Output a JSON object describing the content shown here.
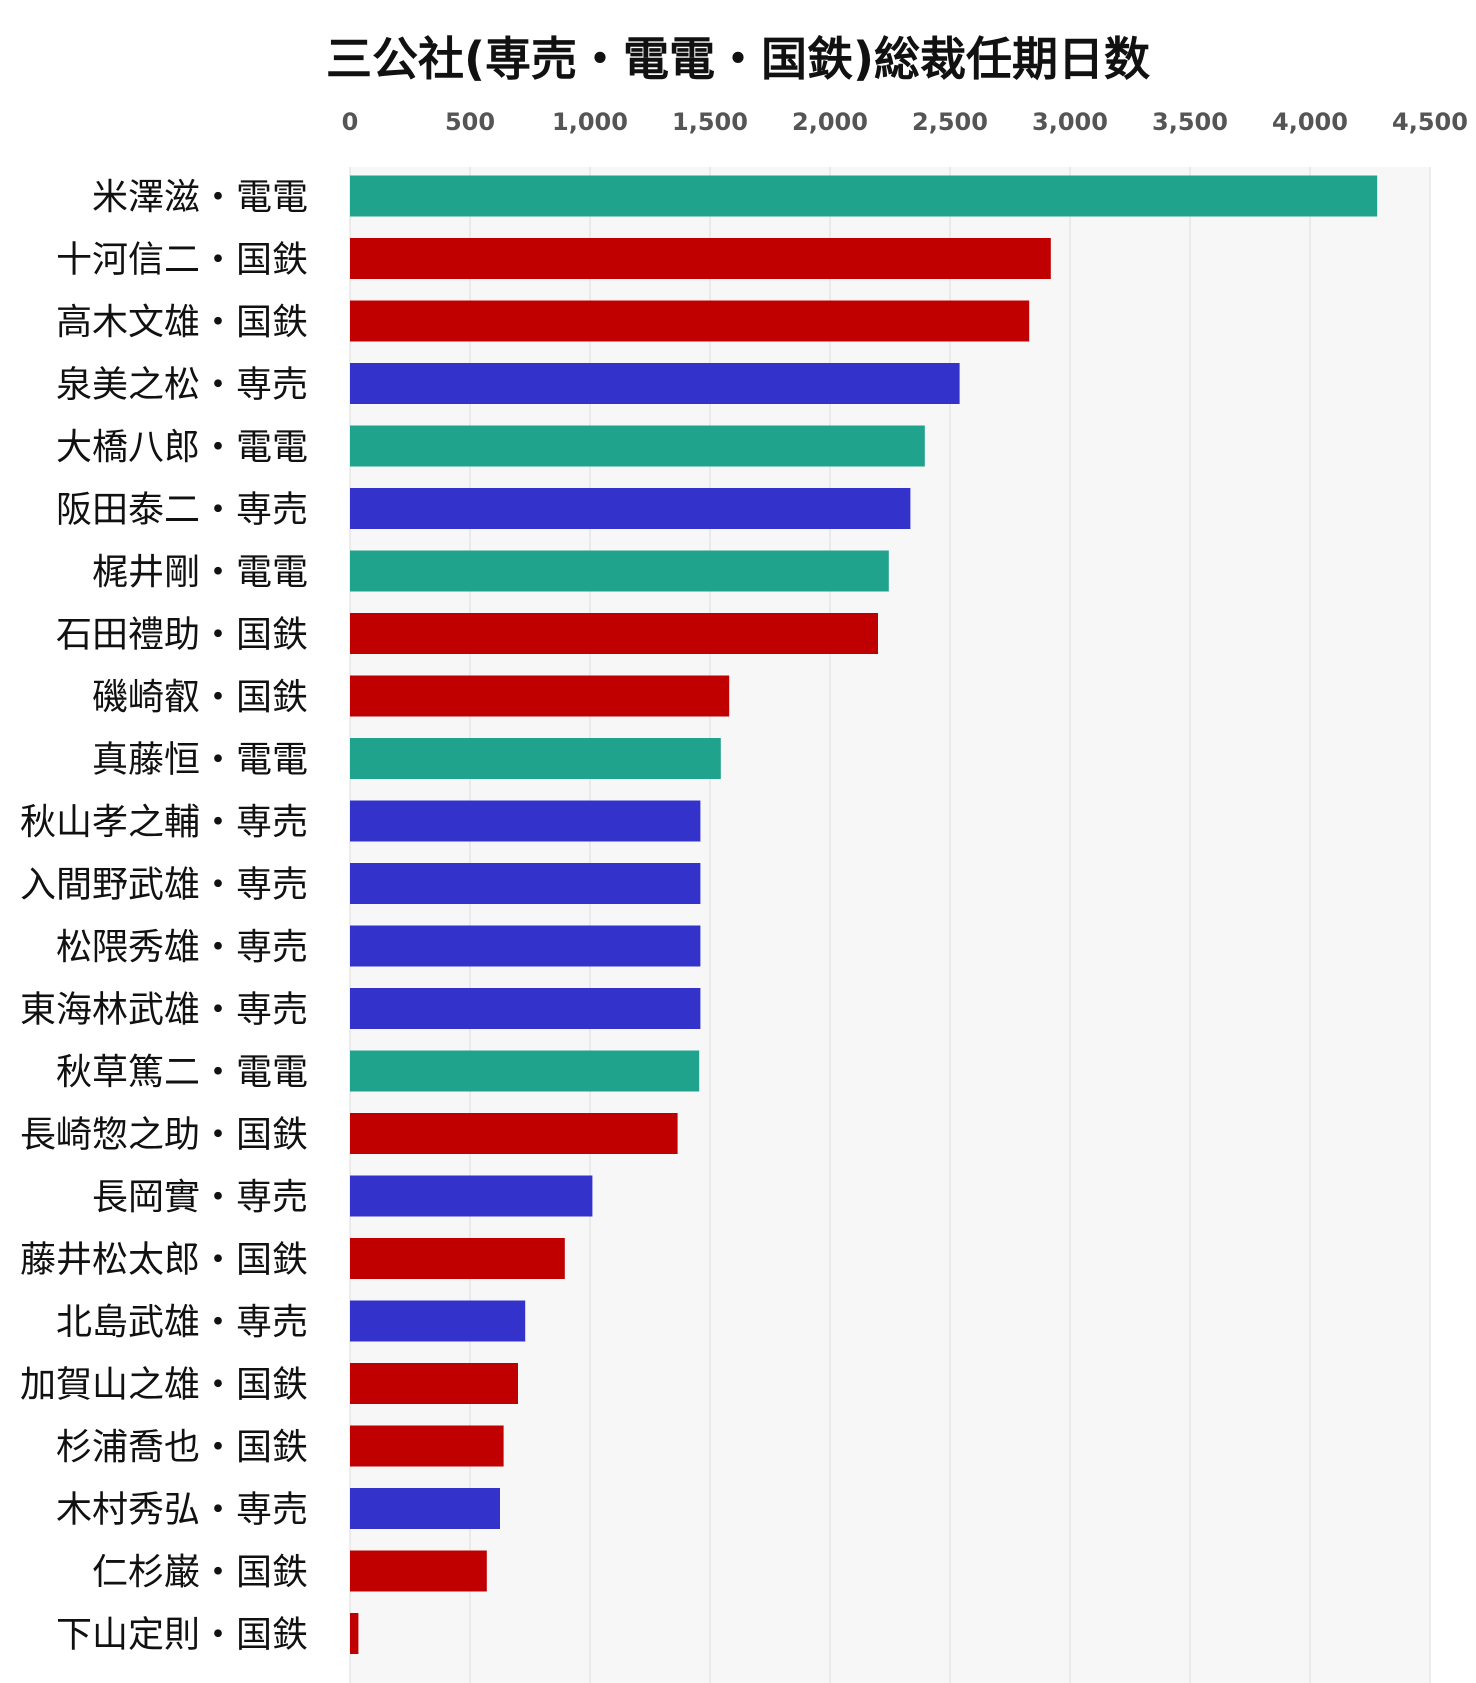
{
  "chart_data": {
    "type": "bar",
    "orientation": "horizontal",
    "title": "三公社(専売・電電・国鉄)総裁任期日数",
    "xlabel": "",
    "ylabel": "",
    "xlim": [
      0,
      4500
    ],
    "x_ticks": [
      0,
      500,
      1000,
      1500,
      2000,
      2500,
      3000,
      3500,
      4000,
      4500
    ],
    "x_tick_labels": [
      "0",
      "500",
      "1,000",
      "1,500",
      "2,000",
      "2,500",
      "3,000",
      "3,500",
      "4,000",
      "4,500"
    ],
    "x_axis_position": "top",
    "grid": true,
    "legend": "none",
    "category_colors": {
      "電電": "#1fa38c",
      "国鉄": "#c00000",
      "専売": "#3333cc"
    },
    "bars": [
      {
        "label": "米澤滋・電電",
        "group": "電電",
        "value": 4280
      },
      {
        "label": "十河信二・国鉄",
        "group": "国鉄",
        "value": 2920
      },
      {
        "label": "高木文雄・国鉄",
        "group": "国鉄",
        "value": 2830
      },
      {
        "label": "泉美之松・専売",
        "group": "専売",
        "value": 2540
      },
      {
        "label": "大橋八郎・電電",
        "group": "電電",
        "value": 2395
      },
      {
        "label": "阪田泰二・専売",
        "group": "専売",
        "value": 2335
      },
      {
        "label": "梶井剛・電電",
        "group": "電電",
        "value": 2245
      },
      {
        "label": "石田禮助・国鉄",
        "group": "国鉄",
        "value": 2200
      },
      {
        "label": "磯崎叡・国鉄",
        "group": "国鉄",
        "value": 1580
      },
      {
        "label": "真藤恒・電電",
        "group": "電電",
        "value": 1545
      },
      {
        "label": "秋山孝之輔・専売",
        "group": "専売",
        "value": 1460
      },
      {
        "label": "入間野武雄・専売",
        "group": "専売",
        "value": 1460
      },
      {
        "label": "松隈秀雄・専売",
        "group": "専売",
        "value": 1460
      },
      {
        "label": "東海林武雄・専売",
        "group": "専売",
        "value": 1460
      },
      {
        "label": "秋草篤二・電電",
        "group": "電電",
        "value": 1455
      },
      {
        "label": "長崎惣之助・国鉄",
        "group": "国鉄",
        "value": 1365
      },
      {
        "label": "長岡實・専売",
        "group": "専売",
        "value": 1010
      },
      {
        "label": "藤井松太郎・国鉄",
        "group": "国鉄",
        "value": 895
      },
      {
        "label": "北島武雄・専売",
        "group": "専売",
        "value": 730
      },
      {
        "label": "加賀山之雄・国鉄",
        "group": "国鉄",
        "value": 700
      },
      {
        "label": "杉浦喬也・国鉄",
        "group": "国鉄",
        "value": 640
      },
      {
        "label": "木村秀弘・専売",
        "group": "専売",
        "value": 625
      },
      {
        "label": "仁杉巌・国鉄",
        "group": "国鉄",
        "value": 570
      },
      {
        "label": "下山定則・国鉄",
        "group": "国鉄",
        "value": 35
      }
    ]
  }
}
